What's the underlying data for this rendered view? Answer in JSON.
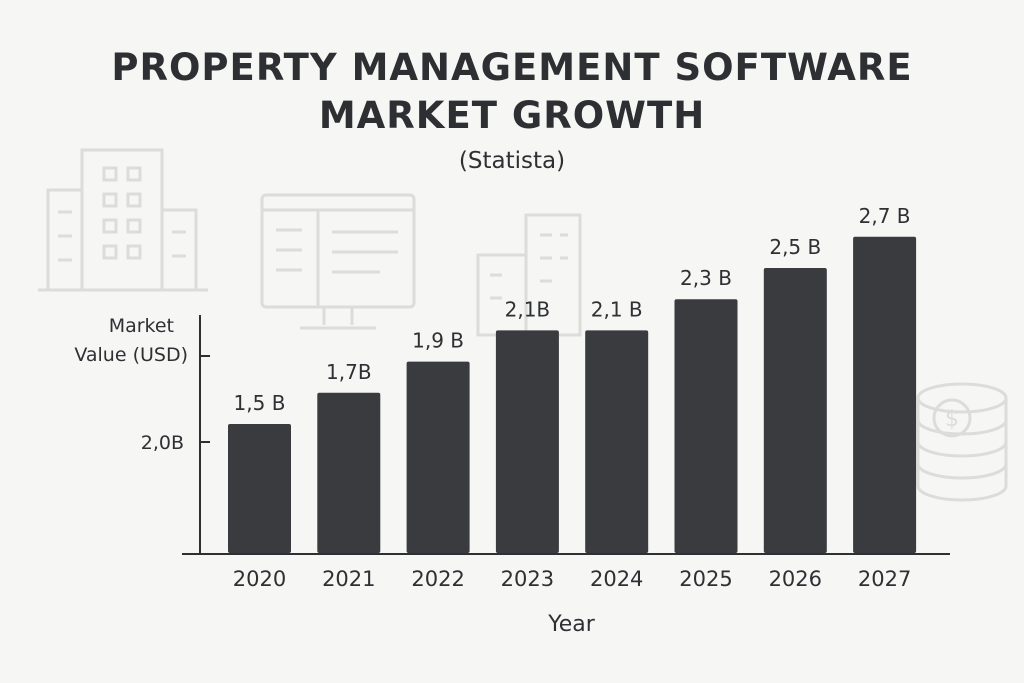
{
  "chart_data": {
    "type": "bar",
    "title_lines": [
      "PROPERTY MANAGEMENT SOFTWARE",
      "MARKET GROWTH"
    ],
    "subtitle": "(Statista)",
    "ylabel_lines": [
      "Market",
      "Value (USD)"
    ],
    "xlabel": "Year",
    "ytick_labels": [
      "2,0B"
    ],
    "categories": [
      "2020",
      "2021",
      "2022",
      "2023",
      "2024",
      "2025",
      "2026",
      "2027"
    ],
    "values": [
      1.5,
      1.7,
      1.9,
      2.1,
      2.1,
      2.3,
      2.5,
      2.7
    ],
    "value_labels": [
      "1,5 B",
      "1,7B",
      "1,9 B",
      "2,1B",
      "2,1 B",
      "2,3 B",
      "2,5 B",
      "2,7 B"
    ],
    "bar_color": "#3a3b3e",
    "background_icons": [
      "building-icon",
      "monitor-icon",
      "buildings-icon",
      "coin-stack-icon"
    ]
  }
}
